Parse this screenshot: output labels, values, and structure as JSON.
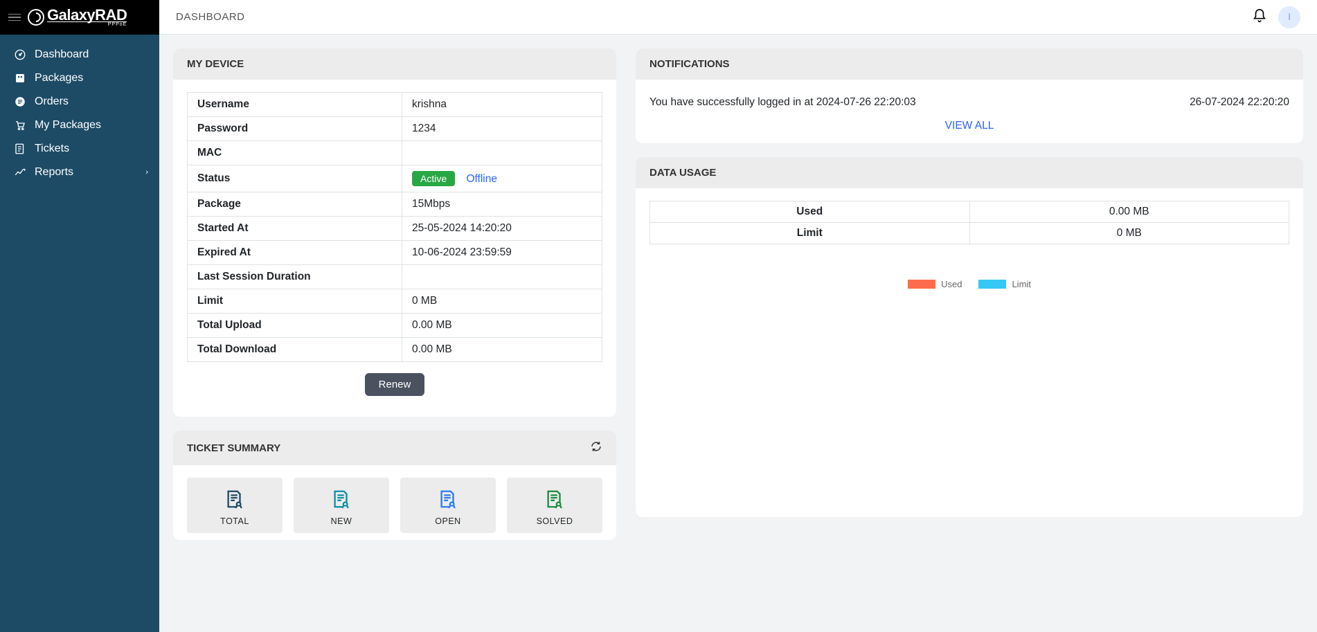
{
  "header": {
    "title": "DASHBOARD",
    "brand_main": "GalaxyRAD",
    "brand_sub": "PPPoE"
  },
  "sidebar": {
    "items": [
      {
        "label": "Dashboard"
      },
      {
        "label": "Packages"
      },
      {
        "label": "Orders"
      },
      {
        "label": "My Packages"
      },
      {
        "label": "Tickets"
      },
      {
        "label": "Reports"
      }
    ]
  },
  "device": {
    "title": "MY DEVICE",
    "rows": {
      "Username": "krishna",
      "Password": "1234",
      "MAC": "",
      "Status_badge": "Active",
      "Status_text": "Offline",
      "Package": "15Mbps",
      "Started At": "25-05-2024 14:20:20",
      "Expired At": "10-06-2024 23:59:59",
      "Last Session Duration": "",
      "Limit": "0 MB",
      "Total Upload": "0.00 MB",
      "Total Download": "0.00 MB"
    },
    "row_labels": {
      "username": "Username",
      "password": "Password",
      "mac": "MAC",
      "status": "Status",
      "package": "Package",
      "started": "Started At",
      "expired": "Expired At",
      "lastsession": "Last Session Duration",
      "limit": "Limit",
      "upload": "Total Upload",
      "download": "Total Download"
    },
    "renew_label": "Renew"
  },
  "notifications": {
    "title": "NOTIFICATIONS",
    "items": [
      {
        "text": "You have successfully logged in at 2024-07-26 22:20:03",
        "time": "26-07-2024 22:20:20"
      }
    ],
    "view_all": "VIEW ALL"
  },
  "data_usage": {
    "title": "DATA USAGE",
    "rows": [
      {
        "label": "Used",
        "value": "0.00 MB"
      },
      {
        "label": "Limit",
        "value": "0 MB"
      }
    ],
    "legend": [
      {
        "label": "Used",
        "color": "#fc6c4c"
      },
      {
        "label": "Limit",
        "color": "#36c8f4"
      }
    ]
  },
  "ticket_summary": {
    "title": "TICKET SUMMARY",
    "tiles": [
      {
        "label": "TOTAL",
        "color": "#1d4b66"
      },
      {
        "label": "NEW",
        "color": "#0e8fa8"
      },
      {
        "label": "OPEN",
        "color": "#2d7bf0"
      },
      {
        "label": "SOLVED",
        "color": "#1c8c3c"
      }
    ]
  },
  "colors": {
    "sidebar_bg": "#1d4b66",
    "brand_bg": "#000000",
    "accent_green": "#28a745",
    "link_blue": "#2962ff"
  }
}
